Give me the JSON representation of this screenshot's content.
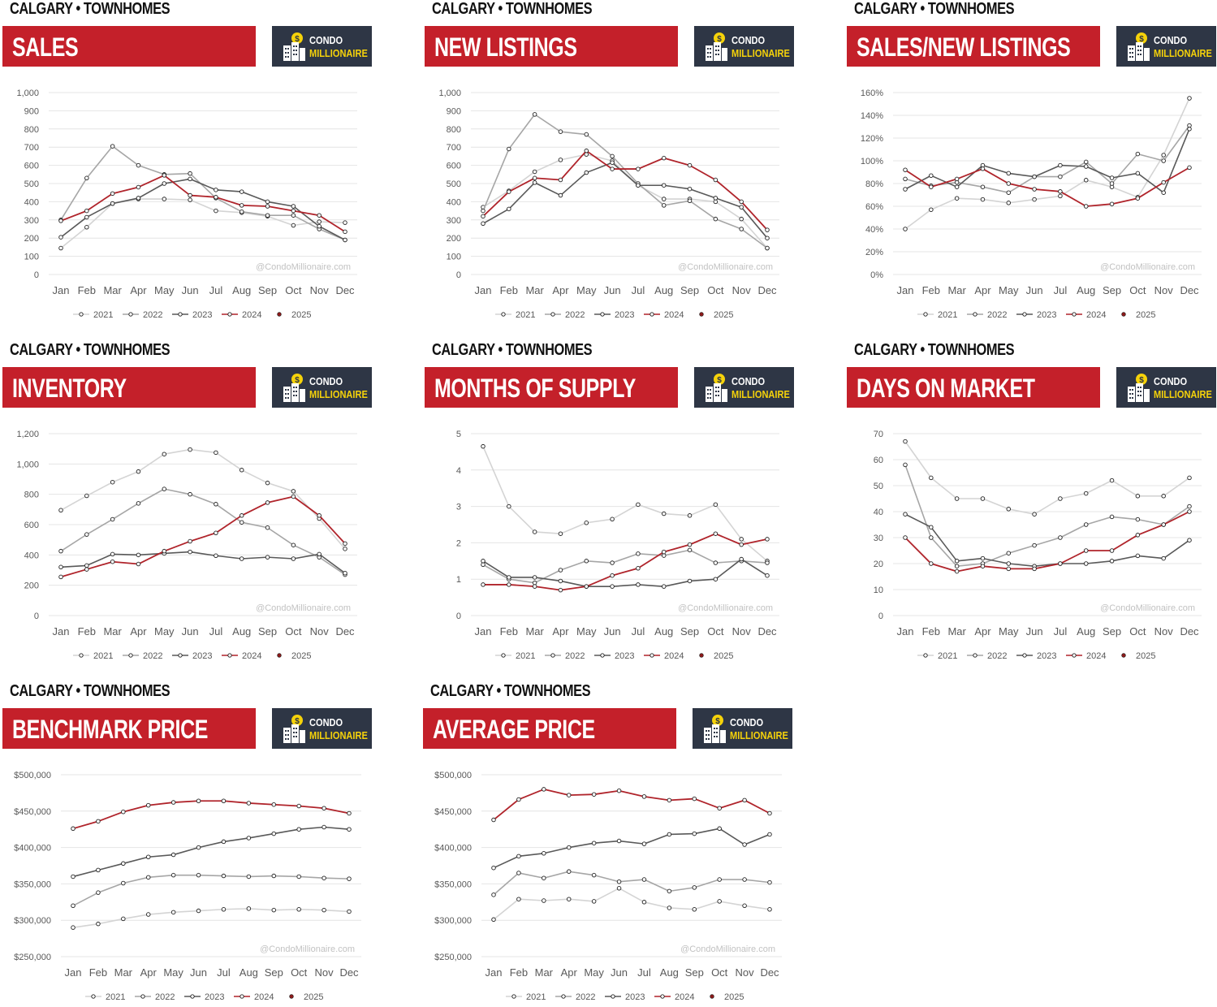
{
  "brand": {
    "line1": "CONDO",
    "line2": "MILLIONAIRE",
    "watermark": "@CondoMillionaire.com"
  },
  "colors": {
    "banner": "#c4202a",
    "logo_bg": "#2e3645",
    "logo_accent": "#f5d20a",
    "s2021": "#d4d4d4",
    "s2022": "#a6a6a6",
    "s2023": "#595959",
    "s2024": "#b0242b",
    "s2025": "#8b1a1a"
  },
  "months": [
    "Jan",
    "Feb",
    "Mar",
    "Apr",
    "May",
    "Jun",
    "Jul",
    "Aug",
    "Sep",
    "Oct",
    "Nov",
    "Dec"
  ],
  "chart_data": [
    {
      "id": "sales",
      "type": "line",
      "city": "CALGARY • TOWNHOMES",
      "title": "SALES",
      "ylim": [
        0,
        1000
      ],
      "yticks": [
        0,
        100,
        200,
        300,
        400,
        500,
        600,
        700,
        800,
        900,
        1000
      ],
      "ytick_labels": [
        "0",
        "100",
        "200",
        "300",
        "400",
        "500",
        "600",
        "700",
        "800",
        "900",
        "1,000"
      ],
      "series": [
        {
          "name": "2021",
          "values": [
            145,
            260,
            390,
            415,
            415,
            410,
            350,
            340,
            320,
            270,
            290,
            285
          ]
        },
        {
          "name": "2022",
          "values": [
            300,
            530,
            705,
            600,
            550,
            555,
            420,
            345,
            325,
            325,
            250,
            190
          ]
        },
        {
          "name": "2023",
          "values": [
            205,
            315,
            390,
            420,
            500,
            525,
            465,
            455,
            400,
            375,
            265,
            190
          ]
        },
        {
          "name": "2024",
          "values": [
            295,
            350,
            445,
            480,
            545,
            435,
            425,
            380,
            375,
            350,
            325,
            235
          ]
        },
        {
          "name": "2025",
          "values": []
        }
      ]
    },
    {
      "id": "new-listings",
      "type": "line",
      "city": "CALGARY • TOWNHOMES",
      "title": "NEW LISTINGS",
      "ylim": [
        0,
        1000
      ],
      "yticks": [
        0,
        100,
        200,
        300,
        400,
        500,
        600,
        700,
        800,
        900,
        1000
      ],
      "ytick_labels": [
        "0",
        "100",
        "200",
        "300",
        "400",
        "500",
        "600",
        "700",
        "800",
        "900",
        "1,000"
      ],
      "series": [
        {
          "name": "2021",
          "values": [
            370,
            460,
            565,
            630,
            660,
            625,
            490,
            415,
            415,
            400,
            305,
            145
          ]
        },
        {
          "name": "2022",
          "values": [
            350,
            690,
            880,
            785,
            770,
            650,
            500,
            380,
            405,
            305,
            250,
            145
          ]
        },
        {
          "name": "2023",
          "values": [
            280,
            360,
            505,
            435,
            560,
            615,
            490,
            490,
            470,
            420,
            370,
            200
          ]
        },
        {
          "name": "2024",
          "values": [
            320,
            455,
            530,
            520,
            680,
            580,
            580,
            640,
            600,
            520,
            400,
            245
          ]
        },
        {
          "name": "2025",
          "values": []
        }
      ]
    },
    {
      "id": "sales-new-listings",
      "type": "line",
      "city": "CALGARY • TOWNHOMES",
      "title": "SALES/NEW LISTINGS",
      "ylim": [
        0,
        160
      ],
      "yticks": [
        0,
        20,
        40,
        60,
        80,
        100,
        120,
        140,
        160
      ],
      "ytick_labels": [
        "0%",
        "20%",
        "40%",
        "60%",
        "80%",
        "100%",
        "120%",
        "140%",
        "160%"
      ],
      "series": [
        {
          "name": "2021",
          "values": [
            40,
            57,
            67,
            66,
            63,
            66,
            69,
            83,
            77,
            68,
            105,
            155
          ]
        },
        {
          "name": "2022",
          "values": [
            84,
            78,
            81,
            77,
            72,
            86,
            86,
            99,
            80,
            106,
            100,
            131
          ]
        },
        {
          "name": "2023",
          "values": [
            75,
            87,
            77,
            96,
            89,
            86,
            96,
            95,
            85,
            89,
            72,
            128
          ]
        },
        {
          "name": "2024",
          "values": [
            92,
            77,
            84,
            93,
            80,
            75,
            73,
            60,
            62,
            67,
            81,
            94
          ]
        },
        {
          "name": "2025",
          "values": []
        }
      ]
    },
    {
      "id": "inventory",
      "type": "line",
      "city": "CALGARY • TOWNHOMES",
      "title": "INVENTORY",
      "ylim": [
        0,
        1200
      ],
      "yticks": [
        0,
        200,
        400,
        600,
        800,
        1000,
        1200
      ],
      "ytick_labels": [
        "0",
        "200",
        "400",
        "600",
        "800",
        "1,000",
        "1,200"
      ],
      "series": [
        {
          "name": "2021",
          "values": [
            695,
            790,
            880,
            950,
            1065,
            1095,
            1075,
            960,
            875,
            820,
            640,
            440
          ]
        },
        {
          "name": "2022",
          "values": [
            425,
            535,
            635,
            740,
            835,
            800,
            735,
            615,
            580,
            465,
            385,
            270
          ]
        },
        {
          "name": "2023",
          "values": [
            320,
            330,
            405,
            400,
            410,
            420,
            395,
            375,
            385,
            375,
            405,
            280
          ]
        },
        {
          "name": "2024",
          "values": [
            255,
            305,
            355,
            340,
            425,
            490,
            545,
            660,
            745,
            785,
            660,
            475
          ]
        },
        {
          "name": "2025",
          "values": []
        }
      ]
    },
    {
      "id": "months-of-supply",
      "type": "line",
      "city": "CALGARY • TOWNHOMES",
      "title": "MONTHS OF SUPPLY",
      "ylim": [
        0,
        5
      ],
      "yticks": [
        0,
        1,
        2,
        3,
        4,
        5
      ],
      "ytick_labels": [
        "0",
        "1",
        "2",
        "3",
        "4",
        "5"
      ],
      "series": [
        {
          "name": "2021",
          "values": [
            4.65,
            3.0,
            2.3,
            2.25,
            2.55,
            2.65,
            3.05,
            2.8,
            2.75,
            3.05,
            2.1,
            1.5
          ]
        },
        {
          "name": "2022",
          "values": [
            1.4,
            1.0,
            0.9,
            1.25,
            1.5,
            1.45,
            1.7,
            1.65,
            1.8,
            1.45,
            1.5,
            1.45
          ]
        },
        {
          "name": "2023",
          "values": [
            1.5,
            1.05,
            1.05,
            0.95,
            0.8,
            0.8,
            0.85,
            0.8,
            0.95,
            1.0,
            1.55,
            1.1
          ]
        },
        {
          "name": "2024",
          "values": [
            0.85,
            0.85,
            0.8,
            0.7,
            0.8,
            1.1,
            1.3,
            1.75,
            1.95,
            2.25,
            1.95,
            2.1
          ]
        },
        {
          "name": "2025",
          "values": []
        }
      ]
    },
    {
      "id": "days-on-market",
      "type": "line",
      "city": "CALGARY • TOWNHOMES",
      "title": "DAYS ON MARKET",
      "ylim": [
        0,
        70
      ],
      "yticks": [
        0,
        10,
        20,
        30,
        40,
        50,
        60,
        70
      ],
      "ytick_labels": [
        "0",
        "10",
        "20",
        "30",
        "40",
        "50",
        "60",
        "70"
      ],
      "series": [
        {
          "name": "2021",
          "values": [
            67,
            53,
            45,
            45,
            41,
            39,
            45,
            47,
            52,
            46,
            46,
            53
          ]
        },
        {
          "name": "2022",
          "values": [
            58,
            30,
            19,
            20,
            24,
            27,
            30,
            35,
            38,
            37,
            35,
            42
          ]
        },
        {
          "name": "2023",
          "values": [
            39,
            34,
            21,
            22,
            20,
            19,
            20,
            20,
            21,
            23,
            22,
            29
          ]
        },
        {
          "name": "2024",
          "values": [
            30,
            20,
            17,
            19,
            18,
            18,
            20,
            25,
            25,
            31,
            35,
            40
          ]
        },
        {
          "name": "2025",
          "values": []
        }
      ]
    },
    {
      "id": "benchmark-price",
      "type": "line",
      "city": "CALGARY • TOWNHOMES",
      "title": "BENCHMARK PRICE",
      "ylim": [
        250000,
        500000
      ],
      "yticks": [
        250000,
        300000,
        350000,
        400000,
        450000,
        500000
      ],
      "ytick_labels": [
        "$250,000",
        "$300,000",
        "$350,000",
        "$400,000",
        "$450,000",
        "$500,000"
      ],
      "series": [
        {
          "name": "2021",
          "values": [
            290000,
            295000,
            302000,
            308000,
            311000,
            313000,
            315000,
            316000,
            314000,
            315000,
            314000,
            312000
          ]
        },
        {
          "name": "2022",
          "values": [
            320000,
            338000,
            351000,
            359000,
            362000,
            362000,
            361000,
            360000,
            361000,
            360000,
            358000,
            357000
          ]
        },
        {
          "name": "2023",
          "values": [
            360000,
            369000,
            378000,
            387000,
            390000,
            400000,
            408000,
            413000,
            419000,
            425000,
            428000,
            425000
          ]
        },
        {
          "name": "2024",
          "values": [
            426000,
            436000,
            449000,
            458000,
            462000,
            464000,
            464000,
            461000,
            459000,
            457000,
            454000,
            447000
          ]
        },
        {
          "name": "2025",
          "values": []
        }
      ]
    },
    {
      "id": "average-price",
      "type": "line",
      "city": "CALGARY • TOWNHOMES",
      "title": "AVERAGE PRICE",
      "ylim": [
        250000,
        500000
      ],
      "yticks": [
        250000,
        300000,
        350000,
        400000,
        450000,
        500000
      ],
      "ytick_labels": [
        "$250,000",
        "$300,000",
        "$350,000",
        "$400,000",
        "$450,000",
        "$500,000"
      ],
      "series": [
        {
          "name": "2021",
          "values": [
            301000,
            329000,
            327000,
            329000,
            326000,
            344000,
            325000,
            317000,
            315000,
            326000,
            320000,
            315000
          ]
        },
        {
          "name": "2022",
          "values": [
            335000,
            365000,
            358000,
            367000,
            362000,
            353000,
            356000,
            340000,
            345000,
            356000,
            356000,
            352000
          ]
        },
        {
          "name": "2023",
          "values": [
            372000,
            388000,
            392000,
            400000,
            406000,
            409000,
            405000,
            418000,
            419000,
            426000,
            404000,
            418000
          ]
        },
        {
          "name": "2024",
          "values": [
            438000,
            466000,
            480000,
            472000,
            473000,
            478000,
            470000,
            465000,
            467000,
            454000,
            465000,
            447000
          ]
        },
        {
          "name": "2025",
          "values": []
        }
      ]
    }
  ]
}
